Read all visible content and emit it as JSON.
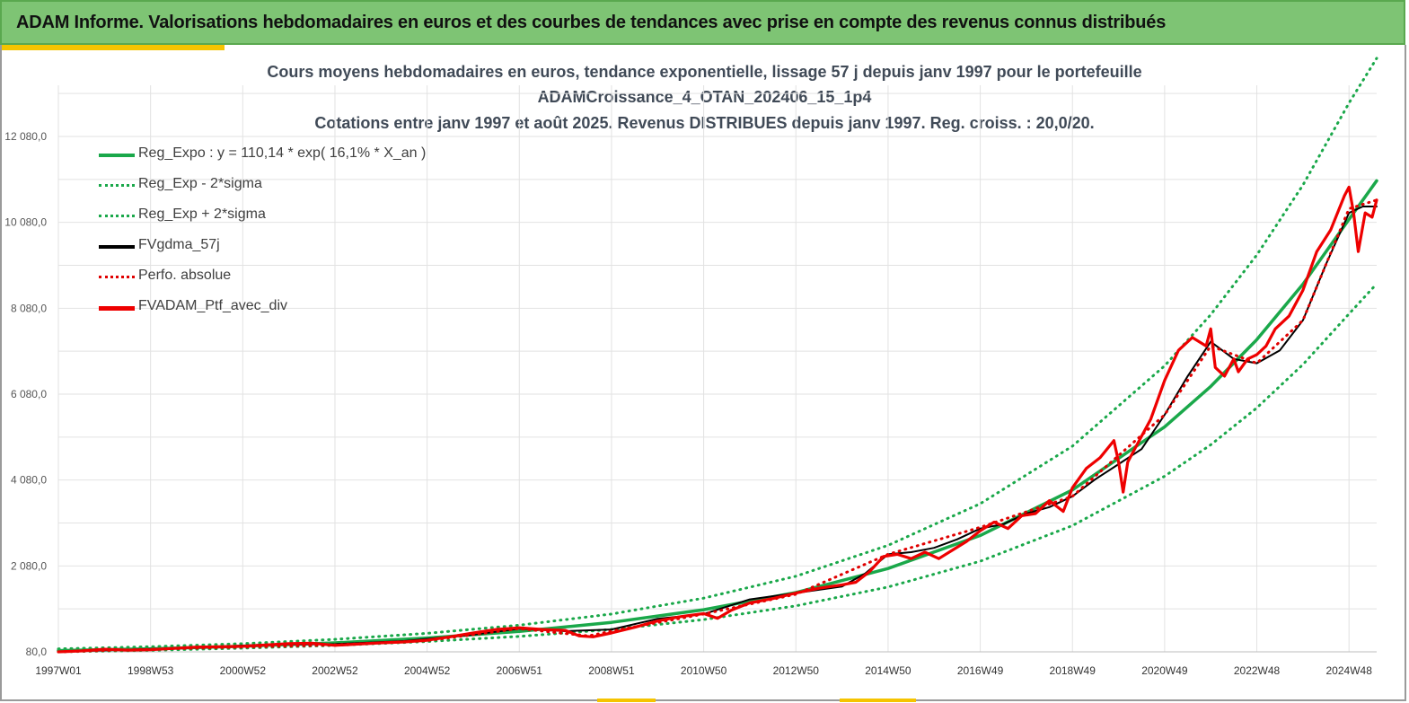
{
  "banner": {
    "title": "ADAM Informe. Valorisations hebdomadaires en euros et des courbes de tendances avec prise en compte des revenus connus distribués"
  },
  "chart_data": {
    "type": "line",
    "title_lines": [
      "Cours moyens hebdomadaires  en euros, tendance exponentielle, lissage 57 j depuis janv 1997 pour le portefeuille",
      "ADAMCroissance_4_OTAN_202406_15_1p4",
      "Cotations  entre janv 1997 et août 2025. Revenus DISTRIBUES depuis janv 1997. Reg. croiss. : 20,0/20."
    ],
    "xlabel": "",
    "ylabel": "",
    "x_range": [
      1997.0,
      2025.6
    ],
    "ylim": [
      80,
      13000
    ],
    "y_ticks": [
      "80,0",
      "2 080,0",
      "4 080,0",
      "6 080,0",
      "8 080,0",
      "10 080,0",
      "12 080,0"
    ],
    "y_tick_values": [
      80,
      2080,
      4080,
      6080,
      8080,
      10080,
      12080
    ],
    "x_ticks": [
      "1997W01",
      "1998W53",
      "2000W52",
      "2002W52",
      "2004W52",
      "2006W51",
      "2008W51",
      "2010W50",
      "2012W50",
      "2014W50",
      "2016W49",
      "2018W49",
      "2020W49",
      "2022W48",
      "2024W48"
    ],
    "x_tick_values": [
      1997.0,
      1999.0,
      2001.0,
      2003.0,
      2005.0,
      2007.0,
      2009.0,
      2011.0,
      2013.0,
      2015.0,
      2017.0,
      2019.0,
      2021.0,
      2023.0,
      2025.0
    ],
    "grid": true,
    "legend_position": "top-left",
    "colors": {
      "trend": "#1aa84a",
      "smooth": "#000000",
      "perf": "#e00000",
      "portfolio": "#ee0000"
    },
    "series": [
      {
        "name": "Reg_Expo : y = 110,14 * exp( 16,1% *  X_an )",
        "style": "solid",
        "color": "#1aa84a",
        "x": [
          1997.0,
          1999.0,
          2001.0,
          2003.0,
          2005.0,
          2007.0,
          2009.0,
          2011.0,
          2013.0,
          2015.0,
          2017.0,
          2019.0,
          2021.0,
          2022.0,
          2023.0,
          2024.0,
          2025.0,
          2025.6
        ],
        "y": [
          110,
          152,
          210,
          290,
          402,
          555,
          765,
          1060,
          1460,
          2020,
          2790,
          3850,
          5320,
          6260,
          7350,
          8640,
          10150,
          11050
        ]
      },
      {
        "name": "Reg_Exp - 2*sigma",
        "style": "dotted",
        "color": "#1aa84a",
        "x": [
          1997.0,
          1999.0,
          2001.0,
          2003.0,
          2005.0,
          2007.0,
          2009.0,
          2011.0,
          2013.0,
          2015.0,
          2017.0,
          2019.0,
          2021.0,
          2022.0,
          2023.0,
          2024.0,
          2025.0,
          2025.6
        ],
        "y": [
          80,
          115,
          165,
          230,
          320,
          440,
          600,
          830,
          1150,
          1590,
          2190,
          3020,
          4170,
          4900,
          5760,
          6770,
          7950,
          8650
        ]
      },
      {
        "name": "Reg_Exp + 2*sigma",
        "style": "dotted",
        "color": "#1aa84a",
        "x": [
          1997.0,
          1999.0,
          2001.0,
          2003.0,
          2005.0,
          2007.0,
          2009.0,
          2011.0,
          2013.0,
          2015.0,
          2017.0,
          2019.0,
          2021.0,
          2022.0,
          2023.0,
          2024.0,
          2025.0,
          2025.6
        ],
        "y": [
          150,
          200,
          270,
          370,
          510,
          700,
          960,
          1330,
          1840,
          2560,
          3530,
          4870,
          6740,
          7930,
          9320,
          10950,
          12860,
          13900
        ]
      },
      {
        "name": "FVgdma_57j",
        "style": "solid",
        "color": "#000000",
        "x": [
          1997.0,
          1998.5,
          2000.0,
          2001.5,
          2003.0,
          2004.5,
          2006.0,
          2007.0,
          2008.0,
          2009.0,
          2010.0,
          2011.0,
          2012.0,
          2013.0,
          2014.0,
          2014.5,
          2015.0,
          2015.5,
          2016.0,
          2016.5,
          2017.0,
          2017.5,
          2018.0,
          2018.5,
          2019.0,
          2019.5,
          2020.0,
          2020.5,
          2021.0,
          2021.5,
          2022.0,
          2022.5,
          2023.0,
          2023.5,
          2024.0,
          2024.5,
          2025.0,
          2025.3,
          2025.6
        ],
        "y": [
          80,
          130,
          180,
          250,
          260,
          330,
          480,
          620,
          560,
          600,
          850,
          960,
          1300,
          1450,
          1600,
          1900,
          2350,
          2400,
          2500,
          2700,
          2950,
          3050,
          3300,
          3450,
          3700,
          4100,
          4450,
          4800,
          5600,
          6500,
          7300,
          6900,
          6800,
          7100,
          7800,
          9100,
          10300,
          10450,
          10450
        ]
      },
      {
        "name": "Perfo. absolue",
        "style": "dotted",
        "color": "#e00000",
        "x": [
          1997.0,
          1999.0,
          2001.0,
          2003.0,
          2005.0,
          2007.0,
          2008.5,
          2009.0,
          2011.0,
          2013.0,
          2015.0,
          2017.0,
          2019.0,
          2021.0,
          2022.0,
          2023.0,
          2024.0,
          2025.0,
          2025.6
        ],
        "y": [
          80,
          140,
          190,
          240,
          340,
          620,
          450,
          560,
          960,
          1420,
          2350,
          2980,
          3700,
          5600,
          7200,
          6800,
          7800,
          10400,
          10600
        ]
      },
      {
        "name": "FVADAM_Ptf_avec_div",
        "style": "solid-thick",
        "color": "#ee0000",
        "x": [
          1997.0,
          1997.5,
          1998.0,
          1998.5,
          1999.0,
          1999.5,
          2000.0,
          2000.5,
          2001.0,
          2001.5,
          2002.0,
          2002.5,
          2003.0,
          2003.5,
          2004.0,
          2004.5,
          2005.0,
          2005.5,
          2006.0,
          2006.5,
          2007.0,
          2007.5,
          2008.0,
          2008.3,
          2008.6,
          2009.0,
          2009.5,
          2010.0,
          2010.5,
          2011.0,
          2011.3,
          2011.6,
          2012.0,
          2012.5,
          2013.0,
          2013.5,
          2014.0,
          2014.3,
          2014.6,
          2014.9,
          2015.2,
          2015.5,
          2015.8,
          2016.1,
          2016.4,
          2016.7,
          2017.0,
          2017.3,
          2017.6,
          2017.9,
          2018.2,
          2018.5,
          2018.8,
          2019.0,
          2019.3,
          2019.6,
          2019.9,
          2020.0,
          2020.1,
          2020.2,
          2020.4,
          2020.7,
          2021.0,
          2021.3,
          2021.6,
          2021.9,
          2022.0,
          2022.1,
          2022.3,
          2022.5,
          2022.6,
          2022.8,
          2023.0,
          2023.2,
          2023.4,
          2023.7,
          2024.0,
          2024.3,
          2024.6,
          2024.9,
          2025.0,
          2025.1,
          2025.2,
          2025.35,
          2025.5,
          2025.6
        ],
        "y": [
          80,
          100,
          140,
          120,
          130,
          160,
          190,
          200,
          210,
          240,
          270,
          280,
          230,
          260,
          290,
          310,
          350,
          430,
          520,
          600,
          640,
          600,
          580,
          450,
          430,
          520,
          650,
          800,
          900,
          970,
          860,
          1050,
          1220,
          1320,
          1450,
          1560,
          1640,
          1700,
          1950,
          2300,
          2350,
          2250,
          2400,
          2250,
          2450,
          2650,
          2900,
          3100,
          2950,
          3250,
          3300,
          3600,
          3350,
          3900,
          4350,
          4600,
          5000,
          4500,
          3800,
          4500,
          4900,
          5500,
          6400,
          7100,
          7400,
          7200,
          7600,
          6700,
          6500,
          6900,
          6600,
          6900,
          7000,
          7200,
          7600,
          7900,
          8500,
          9400,
          9900,
          10700,
          10900,
          10300,
          9400,
          10300,
          10200,
          10600
        ]
      }
    ]
  }
}
